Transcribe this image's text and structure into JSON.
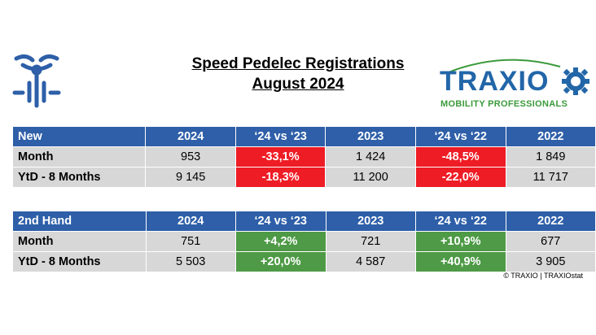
{
  "header": {
    "title_line1": "Speed Pedelec Registrations",
    "title_line2": "August 2024",
    "logo_text": "TRAXIO",
    "logo_sub": "MOBILITY PROFESSIONALS"
  },
  "colors": {
    "header_blue": "#2e5fa8",
    "negative_red": "#ee1c25",
    "positive_green": "#4e9a46",
    "cell_gray": "#d7d7d7"
  },
  "new_table": {
    "headers": [
      "New",
      "2024",
      "‘24 vs ‘23",
      "2023",
      "‘24 vs ‘22",
      "2022"
    ],
    "rows": [
      [
        "Month",
        "953",
        "-33,1%",
        "1 424",
        "-48,5%",
        "1 849"
      ],
      [
        "YtD - 8 Months",
        "9 145",
        "-18,3%",
        "11 200",
        "-22,0%",
        "11 717"
      ]
    ]
  },
  "second_table": {
    "headers": [
      "2nd Hand",
      "2024",
      "‘24 vs ‘23",
      "2023",
      "‘24 vs ‘22",
      "2022"
    ],
    "rows": [
      [
        "Month",
        "751",
        "+4,2%",
        "721",
        "+10,9%",
        "677"
      ],
      [
        "YtD - 8 Months",
        "5 503",
        "+20,0%",
        "4 587",
        "+40,9%",
        "3 905"
      ]
    ]
  },
  "footer": {
    "copyright": "© TRAXIO | TRAXIOstat"
  }
}
